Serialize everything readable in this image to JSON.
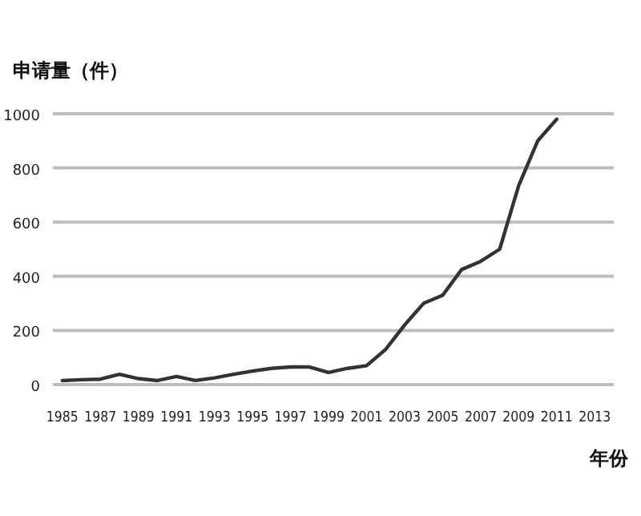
{
  "chart_data": {
    "type": "line",
    "title": "申请量（件）",
    "xlabel": "年份",
    "x": [
      1985,
      1986,
      1987,
      1988,
      1989,
      1990,
      1991,
      1992,
      1993,
      1994,
      1995,
      1996,
      1997,
      1998,
      1999,
      2000,
      2001,
      2002,
      2003,
      2004,
      2005,
      2006,
      2007,
      2008,
      2009,
      2010,
      2011
    ],
    "series": [
      {
        "color": "#333333",
        "values": [
          15,
          18,
          20,
          38,
          22,
          15,
          30,
          15,
          25,
          38,
          50,
          60,
          65,
          65,
          45,
          60,
          70,
          130,
          220,
          300,
          330,
          425,
          455,
          500,
          735,
          900,
          980
        ]
      }
    ],
    "xlim": [
      1984.5,
      2014
    ],
    "xticks": [
      1985,
      1987,
      1989,
      1991,
      1993,
      1995,
      1997,
      1999,
      2001,
      2003,
      2005,
      2007,
      2009,
      2011,
      2013
    ],
    "ylim": [
      0,
      1000
    ],
    "yticks": [
      0,
      200,
      400,
      600,
      800,
      1000
    ],
    "grid": "y",
    "marker": "none",
    "line_style": "solid"
  }
}
